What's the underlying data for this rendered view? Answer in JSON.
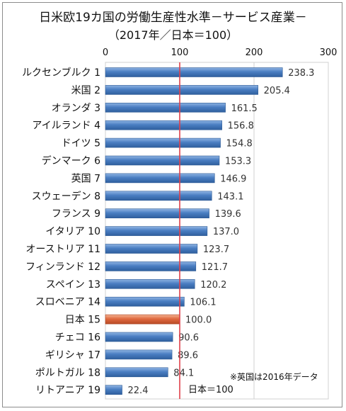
{
  "chart_data": {
    "type": "bar",
    "orientation": "horizontal",
    "title": "日米欧19カ国の労働生産性水準－サービス産業－",
    "subtitle": "（2017年／日本＝100）",
    "xlim": [
      0,
      300
    ],
    "xticks": [
      "0",
      "100",
      "200",
      "300"
    ],
    "grid": true,
    "categories": [
      "ルクセンブルク 1",
      "米国 2",
      "オランダ 3",
      "アイルランド 4",
      "ドイツ 5",
      "デンマーク 6",
      "英国 7",
      "スウェーデン 8",
      "フランス 9",
      "イタリア 10",
      "オーストリア 11",
      "フィンランド 12",
      "スペイン 13",
      "スロベニア 14",
      "日本 15",
      "チェコ 16",
      "ギリシャ 17",
      "ポルトガル 18",
      "リトアニア 19"
    ],
    "values": [
      238.3,
      205.4,
      161.5,
      156.8,
      154.8,
      153.3,
      146.9,
      143.1,
      139.6,
      137.0,
      123.7,
      121.7,
      120.2,
      106.1,
      100.0,
      90.6,
      89.6,
      84.1,
      22.4
    ],
    "value_labels": [
      "238.3",
      "205.4",
      "161.5",
      "156.8",
      "154.8",
      "153.3",
      "146.9",
      "143.1",
      "139.6",
      "137.0",
      "123.7",
      "121.7",
      "120.2",
      "106.1",
      "100.0",
      "90.6",
      "89.6",
      "84.1",
      "22.4"
    ],
    "highlight_index": 14,
    "reference_line": {
      "value": 100,
      "label": "日本＝100",
      "color": "#e0404a"
    },
    "note": "※英国は2016年データ",
    "colors": {
      "bar": "#4a7ec2",
      "highlight": "#e06a40",
      "grid": "#d0d0d0"
    }
  }
}
